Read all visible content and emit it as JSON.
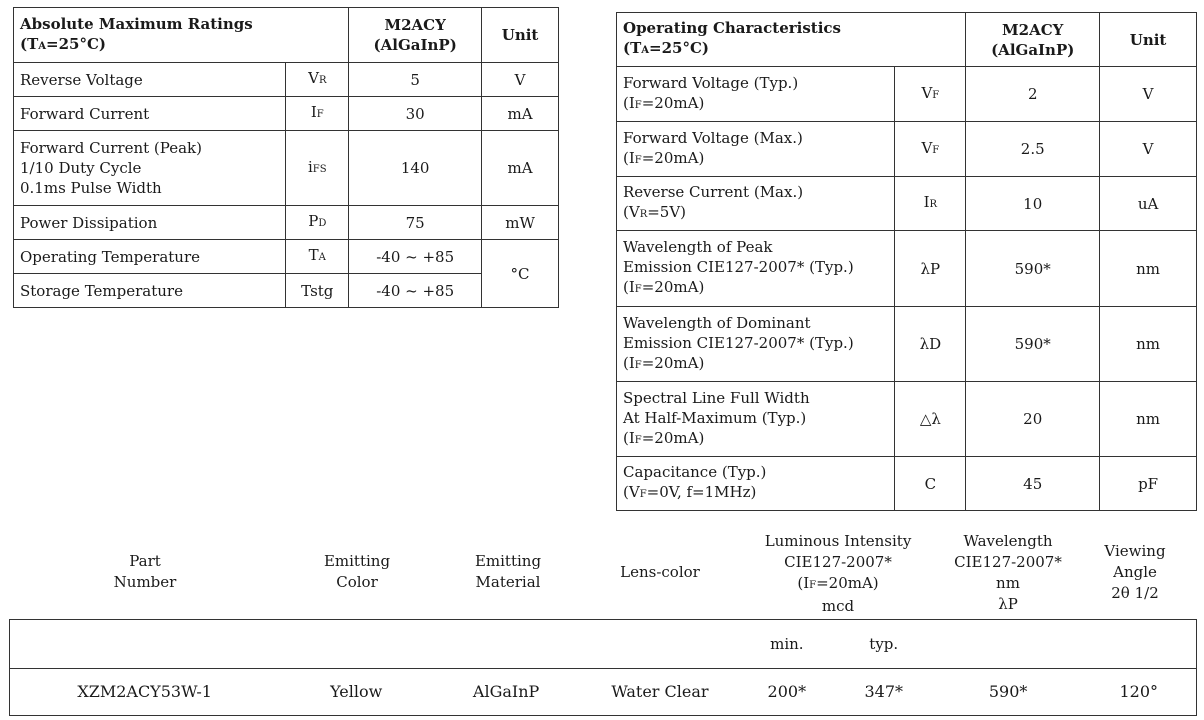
{
  "abs_table": {
    "title": "Absolute Maximum Ratings",
    "cond": {
      "pre": "(T",
      "sub": "A",
      "post": "=25°C)"
    },
    "col_part": "M2ACY",
    "col_mat": "(AlGaInP)",
    "col_unit": "Unit",
    "rows": [
      {
        "param": "Reverse Voltage",
        "sym": "V",
        "symsub": "R",
        "value": "5",
        "unit": "V"
      },
      {
        "param": "Forward Current",
        "sym": "I",
        "symsub": "F",
        "value": "30",
        "unit": "mA"
      },
      {
        "param_lines": [
          "Forward Current (Peak)",
          "1/10 Duty Cycle",
          "0.1ms Pulse Width"
        ],
        "sym": "i",
        "symsub": "FS",
        "value": "140",
        "unit": "mA"
      },
      {
        "param": "Power Dissipation",
        "sym": "P",
        "symsub": "D",
        "value": "75",
        "unit": "mW"
      },
      {
        "param": "Operating Temperature",
        "sym": "T",
        "symsub": "A",
        "value": "-40 ~ +85",
        "unit": "°C"
      },
      {
        "param": "Storage Temperature",
        "sym": "Tstg",
        "value": "-40 ~ +85"
      }
    ]
  },
  "op_table": {
    "title": "Operating Characteristics",
    "cond": {
      "pre": "(T",
      "sub": "A",
      "post": "=25°C)"
    },
    "col_part": "M2ACY",
    "col_mat": "(AlGaInP)",
    "col_unit": "Unit",
    "rows": [
      {
        "line1": "Forward Voltage (Typ.)",
        "cond_pre": "(I",
        "cond_sub": "F",
        "cond_post": "=20mA)",
        "sym": "V",
        "symsub": "F",
        "value": "2",
        "unit": "V"
      },
      {
        "line1": "Forward Voltage (Max.)",
        "cond_pre": "(I",
        "cond_sub": "F",
        "cond_post": "=20mA)",
        "sym": "V",
        "symsub": "F",
        "value": "2.5",
        "unit": "V"
      },
      {
        "line1": "Reverse Current (Max.)",
        "cond_pre": "(V",
        "cond_sub": "R",
        "cond_post": "=5V)",
        "sym": "I",
        "symsub": "R",
        "value": "10",
        "unit": "uA"
      },
      {
        "line1": "Wavelength of Peak",
        "line2": "Emission CIE127-2007* (Typ.)",
        "cond_pre": "(I",
        "cond_sub": "F",
        "cond_post": "=20mA)",
        "sym": "λP",
        "value": "590*",
        "unit": "nm"
      },
      {
        "line1": "Wavelength of Dominant",
        "line2": "Emission CIE127-2007* (Typ.)",
        "cond_pre": "(I",
        "cond_sub": "F",
        "cond_post": "=20mA)",
        "sym": "λD",
        "value": "590*",
        "unit": "nm"
      },
      {
        "line1": "Spectral Line Full Width",
        "line2": "At Half-Maximum (Typ.)",
        "cond_pre": "(I",
        "cond_sub": "F",
        "cond_post": "=20mA)",
        "sym": "△λ",
        "value": "20",
        "unit": "nm"
      },
      {
        "line1": "Capacitance (Typ.)",
        "cond_pre": "(V",
        "cond_sub": "F",
        "cond_post": "=0V, f=1MHz)",
        "sym": "C",
        "value": "45",
        "unit": "pF"
      }
    ]
  },
  "product": {
    "headers": {
      "part": [
        "Part",
        "Number"
      ],
      "color": [
        "Emitting",
        "Color"
      ],
      "material": [
        "Emitting",
        "Material"
      ],
      "lens": "Lens-color",
      "lum": {
        "l1": "Luminous Intensity",
        "l2": "CIE127-2007*",
        "l3_pre": "(I",
        "l3_sub": "F",
        "l3_post": "=20mA)",
        "l4": "mcd"
      },
      "wave": [
        "Wavelength",
        "CIE127-2007*",
        "nm",
        "λP"
      ],
      "angle": [
        "Viewing",
        "Angle",
        "2θ 1/2"
      ]
    },
    "min_label": "min.",
    "typ_label": "typ.",
    "row": {
      "part": "XZM2ACY53W-1",
      "color": "Yellow",
      "material": "AlGaInP",
      "lens": "Water Clear",
      "min": "200*",
      "typ": "347*",
      "wave": "590*",
      "angle": "120°"
    }
  }
}
